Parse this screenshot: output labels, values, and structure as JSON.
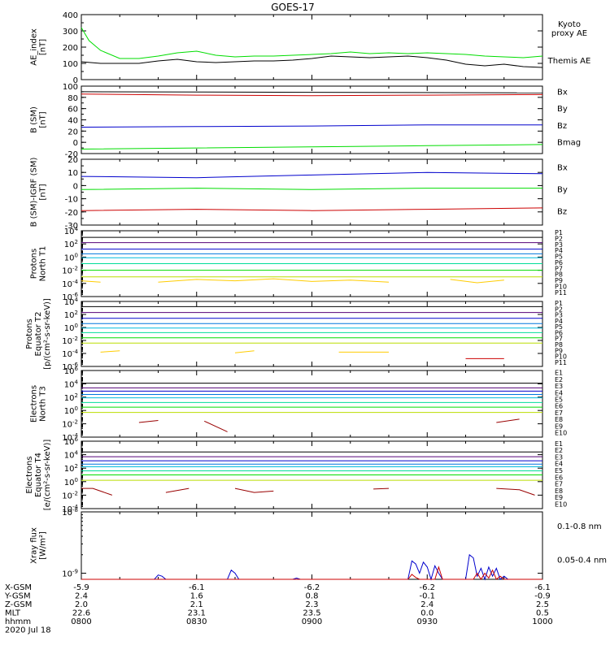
{
  "title": "GOES-17",
  "colors": {
    "black": "#000000",
    "blue": "#0000cc",
    "green": "#00dd00",
    "red": "#cc0000",
    "p_colors": [
      "#000000",
      "#550077",
      "#0000cc",
      "#0077dd",
      "#00bbdd",
      "#00dd99",
      "#00dd00",
      "#bbdd00",
      "#ffcc00",
      "#ff7700",
      "#cc0000",
      "#990000"
    ]
  },
  "footer": {
    "rows": [
      {
        "label": "X-GSM",
        "values": [
          "-5.9",
          "-6.1",
          "-6.2",
          "-6.2",
          "-6.1"
        ]
      },
      {
        "label": "Y-GSM",
        "values": [
          "2.4",
          "1.6",
          "0.8",
          "-0.1",
          "-0.9"
        ]
      },
      {
        "label": "Z-GSM",
        "values": [
          "2.0",
          "2.1",
          "2.3",
          "2.4",
          "2.5"
        ]
      },
      {
        "label": "MLT",
        "values": [
          "22.6",
          "23.1",
          "23.5",
          "0.0",
          "0.5"
        ]
      },
      {
        "label": "hhmm",
        "values": [
          "0800",
          "0830",
          "0900",
          "0930",
          "1000"
        ]
      }
    ],
    "date": "2020 Jul 18"
  },
  "chart_data": [
    {
      "type": "line",
      "ylabel": [
        "AE_index",
        "[nT]"
      ],
      "ylim": [
        0,
        400
      ],
      "yticks": [
        "0",
        "100",
        "200",
        "300",
        "400"
      ],
      "legend": [
        {
          "name": "Kyoto\nproxy AE",
          "color": "#00dd00"
        },
        {
          "name": "Themis AE",
          "color": "#000000"
        }
      ],
      "series": [
        {
          "name": "Kyoto proxy AE",
          "color": "#00dd00",
          "x": [
            0,
            2,
            5,
            10,
            15,
            20,
            25,
            30,
            35,
            40,
            45,
            50,
            55,
            60,
            65,
            70,
            75,
            80,
            85,
            90,
            95,
            100,
            105,
            110,
            115,
            120
          ],
          "y": [
            320,
            240,
            180,
            130,
            130,
            145,
            165,
            175,
            150,
            140,
            145,
            145,
            150,
            155,
            160,
            170,
            160,
            165,
            160,
            165,
            160,
            155,
            145,
            140,
            135,
            145
          ]
        },
        {
          "name": "Themis AE",
          "color": "#000000",
          "x": [
            0,
            5,
            10,
            15,
            20,
            25,
            30,
            35,
            40,
            45,
            50,
            55,
            60,
            65,
            70,
            75,
            80,
            85,
            90,
            95,
            100,
            105,
            110,
            115,
            120
          ],
          "y": [
            110,
            100,
            100,
            100,
            115,
            125,
            110,
            105,
            110,
            115,
            115,
            120,
            130,
            145,
            140,
            135,
            140,
            145,
            135,
            120,
            95,
            85,
            95,
            80,
            75
          ]
        }
      ]
    },
    {
      "type": "line",
      "ylabel": [
        "B (SM)",
        "[nT]"
      ],
      "ylim": [
        -20,
        100
      ],
      "yticks": [
        "-20",
        "0",
        "20",
        "40",
        "60",
        "80",
        "100"
      ],
      "legend": [
        {
          "name": "Bx",
          "color": "#0000cc"
        },
        {
          "name": "By",
          "color": "#00dd00"
        },
        {
          "name": "Bz",
          "color": "#cc0000"
        },
        {
          "name": "Bmag",
          "color": "#000000"
        }
      ],
      "series": [
        {
          "name": "Bmag",
          "color": "#000000",
          "x": [
            0,
            120
          ],
          "y": [
            90,
            88
          ]
        },
        {
          "name": "Bz",
          "color": "#cc0000",
          "x": [
            0,
            30,
            60,
            90,
            120
          ],
          "y": [
            86,
            84,
            83,
            84,
            85
          ]
        },
        {
          "name": "Bx",
          "color": "#0000cc",
          "x": [
            0,
            30,
            60,
            90,
            120
          ],
          "y": [
            27,
            28,
            29,
            31,
            31
          ]
        },
        {
          "name": "By",
          "color": "#00dd00",
          "x": [
            0,
            30,
            60,
            90,
            120
          ],
          "y": [
            -12,
            -10,
            -8,
            -6,
            -4
          ]
        }
      ]
    },
    {
      "type": "line",
      "ylabel": [
        "B (SM)-IGRF (SM)",
        "[nT]"
      ],
      "ylim": [
        -30,
        20
      ],
      "yticks": [
        "-30",
        "-20",
        "-10",
        "0",
        "10",
        "20"
      ],
      "legend": [
        {
          "name": "Bx",
          "color": "#0000cc"
        },
        {
          "name": "By",
          "color": "#00dd00"
        },
        {
          "name": "Bz",
          "color": "#cc0000"
        }
      ],
      "series": [
        {
          "name": "Bx",
          "color": "#0000cc",
          "x": [
            0,
            30,
            60,
            90,
            120
          ],
          "y": [
            7,
            6,
            8,
            10,
            9
          ]
        },
        {
          "name": "By",
          "color": "#00dd00",
          "x": [
            0,
            30,
            60,
            90,
            120
          ],
          "y": [
            -3,
            -2,
            -3,
            -2,
            -2
          ]
        },
        {
          "name": "Bz",
          "color": "#cc0000",
          "x": [
            0,
            30,
            60,
            90,
            120
          ],
          "y": [
            -19,
            -18,
            -19,
            -18,
            -17
          ]
        }
      ]
    },
    {
      "type": "line",
      "log": true,
      "ylabel": [
        "Protons",
        "North T1"
      ],
      "ylim_exp": [
        -6,
        4
      ],
      "yticks_exp": [
        -6,
        -4,
        -2,
        0,
        2,
        4
      ],
      "legend": [
        "P1",
        "P2",
        "P3",
        "P4",
        "P5",
        "P6",
        "P7",
        "P8",
        "P9",
        "P10",
        "P11"
      ],
      "levels": [
        3.0,
        2.2,
        1.2,
        0.5,
        -0.1,
        -1.0,
        -2.0,
        -3.0
      ],
      "sparse": [
        {
          "color": "#ffcc00",
          "x": [
            0,
            5
          ],
          "y": [
            -3.6,
            -3.8
          ]
        },
        {
          "color": "#ffcc00",
          "x": [
            20,
            30,
            40,
            50,
            60,
            70,
            80
          ],
          "y": [
            -3.8,
            -3.4,
            -3.6,
            -3.3,
            -3.7,
            -3.5,
            -3.8
          ]
        },
        {
          "color": "#ffcc00",
          "x": [
            96,
            103,
            110
          ],
          "y": [
            -3.4,
            -3.9,
            -3.5
          ]
        }
      ]
    },
    {
      "type": "line",
      "log": true,
      "ylabel": [
        "Protons",
        "Equator T2",
        "[p/(cm²-s-sr-keV)]"
      ],
      "ylim_exp": [
        -6,
        4
      ],
      "yticks_exp": [
        -6,
        -4,
        -2,
        0,
        2,
        4
      ],
      "legend": [
        "P1",
        "P2",
        "P3",
        "P4",
        "P5",
        "P6",
        "P7",
        "P8",
        "P9",
        "P10",
        "P11"
      ],
      "levels": [
        3.2,
        2.3,
        1.4,
        0.6,
        -0.1,
        -0.8,
        -1.6,
        -2.4
      ],
      "sparse": [
        {
          "color": "#ffcc00",
          "x": [
            5,
            10
          ],
          "y": [
            -3.8,
            -3.6
          ]
        },
        {
          "color": "#ffcc00",
          "x": [
            40,
            45
          ],
          "y": [
            -3.9,
            -3.6
          ]
        },
        {
          "color": "#ffcc00",
          "x": [
            67,
            80
          ],
          "y": [
            -3.8,
            -3.8
          ]
        },
        {
          "color": "#cc0000",
          "x": [
            100,
            110
          ],
          "y": [
            -4.8,
            -4.8
          ]
        }
      ]
    },
    {
      "type": "line",
      "log": true,
      "ylabel": [
        "Electrons",
        "North T3"
      ],
      "ylim_exp": [
        -4,
        6
      ],
      "yticks_exp": [
        -4,
        -2,
        0,
        2,
        4,
        6
      ],
      "legend": [
        "E1",
        "E2",
        "E3",
        "E4",
        "E5",
        "E6",
        "E7",
        "E8",
        "E9",
        "E10"
      ],
      "levels": [
        4.1,
        3.4,
        2.9,
        2.4,
        1.9,
        1.2,
        0.5,
        -0.3
      ],
      "sparse": [
        {
          "color": "#990000",
          "x": [
            15,
            20
          ],
          "y": [
            -1.8,
            -1.5
          ]
        },
        {
          "color": "#990000",
          "x": [
            32,
            38
          ],
          "y": [
            -1.6,
            -3.2
          ]
        },
        {
          "color": "#990000",
          "x": [
            108,
            114
          ],
          "y": [
            -1.8,
            -1.3
          ]
        }
      ]
    },
    {
      "type": "line",
      "log": true,
      "ylabel": [
        "Electrons",
        "Equator T4",
        "[e/(cm²-s-sr-keV)]"
      ],
      "ylim_exp": [
        -4,
        6
      ],
      "yticks_exp": [
        -4,
        -2,
        0,
        2,
        4,
        6
      ],
      "legend": [
        "E1",
        "E2",
        "E3",
        "E4",
        "E5",
        "E6",
        "E7",
        "E8",
        "E9",
        "E10"
      ],
      "levels": [
        4.4,
        3.7,
        3.1,
        2.6,
        2.2,
        1.6,
        1.0,
        0.2
      ],
      "sparse": [
        {
          "color": "#990000",
          "x": [
            0,
            3,
            8
          ],
          "y": [
            -1.0,
            -1.0,
            -2.0
          ]
        },
        {
          "color": "#990000",
          "x": [
            22,
            28
          ],
          "y": [
            -1.6,
            -1.0
          ]
        },
        {
          "color": "#990000",
          "x": [
            40,
            45,
            50
          ],
          "y": [
            -1.0,
            -1.6,
            -1.4
          ]
        },
        {
          "color": "#990000",
          "x": [
            76,
            80
          ],
          "y": [
            -1.1,
            -1.0
          ]
        },
        {
          "color": "#990000",
          "x": [
            108,
            114,
            118
          ],
          "y": [
            -1.0,
            -1.2,
            -2.0
          ]
        }
      ]
    },
    {
      "type": "line",
      "log": true,
      "ylabel": [
        "Xray flux",
        "[W/m²]"
      ],
      "ylim_exp": [
        -9.1,
        -8
      ],
      "yticks_exp": [
        -9,
        -8
      ],
      "legend": [
        {
          "name": "0.1-0.8 nm",
          "color": "#cc0000"
        },
        {
          "name": "0.05-0.4 nm",
          "color": "#0000cc"
        }
      ],
      "series": [
        {
          "name": "0.05-0.4 nm",
          "color": "#0000cc",
          "x": [
            0,
            19,
            20,
            21,
            22,
            38,
            39,
            40,
            41,
            55,
            56,
            57,
            85,
            86,
            87,
            88,
            89,
            90,
            91,
            92,
            93,
            94,
            100,
            101,
            102,
            103,
            104,
            105,
            106,
            107,
            108,
            109,
            110,
            111,
            112,
            120
          ],
          "y": [
            -9.1,
            -9.1,
            -9.03,
            -9.05,
            -9.1,
            -9.1,
            -8.95,
            -9.0,
            -9.1,
            -9.1,
            -9.08,
            -9.1,
            -9.1,
            -8.8,
            -8.85,
            -9.0,
            -8.82,
            -8.9,
            -9.1,
            -8.88,
            -9.0,
            -9.1,
            -9.1,
            -8.7,
            -8.75,
            -9.05,
            -8.92,
            -9.1,
            -8.9,
            -9.05,
            -8.92,
            -9.1,
            -9.05,
            -9.1,
            -9.1,
            -9.1
          ]
        },
        {
          "name": "0.1-0.8 nm",
          "color": "#cc0000",
          "x": [
            0,
            85,
            86,
            87,
            88,
            92,
            93,
            94,
            100,
            102,
            103,
            104,
            105,
            106,
            107,
            108,
            109,
            110,
            111,
            120
          ],
          "y": [
            -9.1,
            -9.1,
            -9.02,
            -9.07,
            -9.1,
            -9.1,
            -8.9,
            -9.1,
            -9.1,
            -9.1,
            -9.0,
            -9.1,
            -9.0,
            -9.08,
            -8.95,
            -9.1,
            -9.05,
            -9.1,
            -9.1,
            -9.1
          ]
        }
      ]
    }
  ]
}
